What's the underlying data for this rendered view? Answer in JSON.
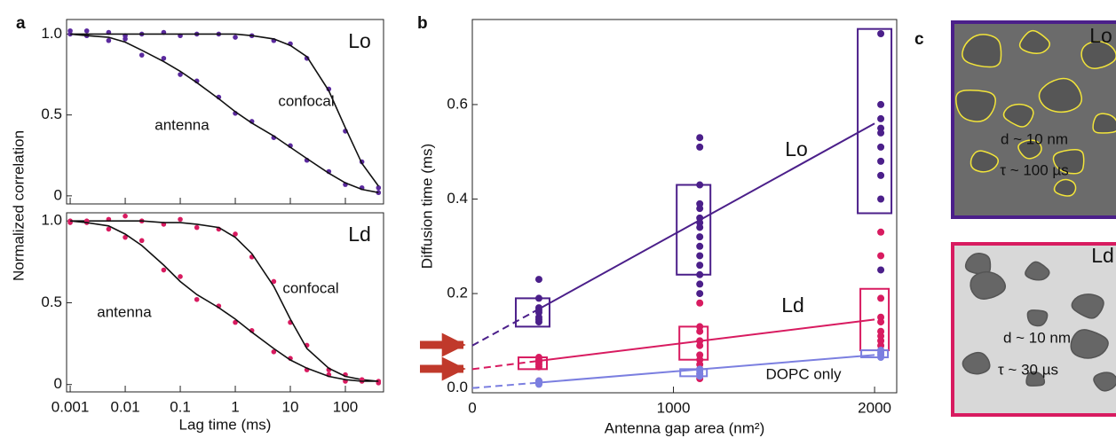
{
  "chart_data": [
    {
      "type": "line",
      "panel": "a",
      "label": "Lo",
      "label_color": "#5b2a9e",
      "log_x": true,
      "ylabel": "Normalized correlation",
      "x": [
        0.001,
        0.002,
        0.005,
        0.01,
        0.02,
        0.05,
        0.1,
        0.2,
        0.5,
        1,
        2,
        5,
        10,
        20,
        50,
        100,
        200,
        400
      ],
      "xlim": [
        0.00086,
        494
      ],
      "ylim": [
        -0.05,
        1.09
      ],
      "yticks": [
        0,
        0.5,
        {
          "value": 1,
          "label": "1.0"
        }
      ],
      "series": [
        {
          "name": "confocal",
          "color": "#5b2a9e",
          "values": [
            1.02,
            0.99,
            1.01,
            0.99,
            1.0,
            1.01,
            0.99,
            1.0,
            1.0,
            0.98,
            0.99,
            0.96,
            0.94,
            0.85,
            0.66,
            0.4,
            0.21,
            0.05
          ],
          "fit": [
            1,
            1,
            1,
            1,
            1,
            1,
            1,
            1,
            1,
            1,
            0.99,
            0.97,
            0.93,
            0.86,
            0.65,
            0.42,
            0.2,
            0.06
          ]
        },
        {
          "name": "antenna",
          "color": "#5b2a9e",
          "values": [
            1.0,
            1.02,
            0.96,
            0.97,
            0.87,
            0.85,
            0.75,
            0.71,
            0.61,
            0.51,
            0.46,
            0.36,
            0.31,
            0.22,
            0.15,
            0.07,
            0.05,
            0.02
          ],
          "fit": [
            1,
            0.99,
            0.98,
            0.95,
            0.9,
            0.83,
            0.77,
            0.7,
            0.6,
            0.52,
            0.45,
            0.37,
            0.3,
            0.23,
            0.14,
            0.08,
            0.04,
            0.02
          ]
        }
      ]
    },
    {
      "type": "line",
      "label": "Ld",
      "label_color": "#d81b60",
      "log_x": true,
      "xlabel": "Lag time (ms)",
      "x": [
        0.001,
        0.002,
        0.005,
        0.01,
        0.02,
        0.05,
        0.1,
        0.2,
        0.5,
        1,
        2,
        5,
        10,
        20,
        50,
        100,
        200,
        400
      ],
      "xlim": [
        0.00086,
        494
      ],
      "ylim": [
        -0.045,
        1.05
      ],
      "xticks": [
        0.001,
        0.01,
        0.1,
        1,
        10,
        100
      ],
      "yticks": [
        0,
        0.5,
        {
          "value": 1,
          "label": "1.0"
        }
      ],
      "series": [
        {
          "name": "confocal",
          "color": "#d81b60",
          "values": [
            1.0,
            0.99,
            1.01,
            1.03,
            1.0,
            0.98,
            1.01,
            0.96,
            0.95,
            0.92,
            0.78,
            0.63,
            0.38,
            0.24,
            0.09,
            0.06,
            0.02,
            0.02
          ],
          "fit": [
            1,
            1,
            1,
            1,
            1,
            0.99,
            0.99,
            0.98,
            0.96,
            0.9,
            0.8,
            0.6,
            0.4,
            0.22,
            0.1,
            0.05,
            0.03,
            0.02
          ]
        },
        {
          "name": "antenna",
          "color": "#d81b60",
          "values": [
            0.99,
            1.0,
            0.95,
            0.9,
            0.88,
            0.7,
            0.66,
            0.52,
            0.48,
            0.38,
            0.33,
            0.2,
            0.16,
            0.09,
            0.06,
            0.02,
            0.03,
            0.01
          ],
          "fit": [
            1,
            0.99,
            0.97,
            0.92,
            0.85,
            0.73,
            0.63,
            0.55,
            0.47,
            0.4,
            0.32,
            0.22,
            0.15,
            0.1,
            0.05,
            0.03,
            0.02,
            0.02
          ]
        }
      ]
    },
    {
      "type": "scatter",
      "panel": "b",
      "xlabel": "Antenna gap area (nm²)",
      "ylabel": "Diffusion time (ms)",
      "xlim": [
        0,
        2110
      ],
      "ylim": [
        -0.01,
        0.78
      ],
      "xticks": [
        0,
        1000,
        2000
      ],
      "yticks": [
        {
          "value": 0,
          "label": "0.0"
        },
        0.2,
        0.4,
        0.6
      ],
      "series": [
        {
          "name": "Lo",
          "color": "#4b1f8a",
          "x": [
            300,
            300,
            300,
            300,
            300,
            300,
            300,
            300,
            1100,
            1100,
            1100,
            1100,
            1100,
            1100,
            1100,
            1100,
            1100,
            1100,
            1100,
            1100,
            1100,
            1100,
            1100,
            2000,
            2000,
            2000,
            2000,
            2000,
            2000,
            2000,
            2000,
            2000,
            2000
          ],
          "values": [
            0.23,
            0.19,
            0.17,
            0.165,
            0.16,
            0.15,
            0.145,
            0.14,
            0.53,
            0.51,
            0.43,
            0.39,
            0.38,
            0.36,
            0.35,
            0.34,
            0.32,
            0.3,
            0.28,
            0.26,
            0.24,
            0.22,
            0.2,
            0.75,
            0.6,
            0.57,
            0.55,
            0.54,
            0.51,
            0.48,
            0.45,
            0.4,
            0.25
          ],
          "box_x": [
            300,
            1100,
            2000
          ],
          "box_low": [
            0.13,
            0.24,
            0.37
          ],
          "box_high": [
            0.19,
            0.43,
            0.76
          ],
          "fit_x": [
            0,
            300,
            2000
          ],
          "fit": [
            0.09,
            0.16,
            0.56
          ]
        },
        {
          "name": "Ld",
          "color": "#d81b60",
          "x": [
            300,
            300,
            300,
            300,
            300,
            300,
            1100,
            1100,
            1100,
            1100,
            1100,
            1100,
            1100,
            1100,
            1100,
            1100,
            1100,
            2000,
            2000,
            2000,
            2000,
            2000,
            2000,
            2000,
            2000,
            2000,
            2000
          ],
          "values": [
            0.065,
            0.06,
            0.055,
            0.05,
            0.045,
            0.015,
            0.18,
            0.13,
            0.12,
            0.1,
            0.09,
            0.07,
            0.06,
            0.05,
            0.04,
            0.03,
            0.02,
            0.33,
            0.28,
            0.19,
            0.15,
            0.14,
            0.12,
            0.11,
            0.1,
            0.09,
            0.08
          ],
          "box_x": [
            300,
            1100,
            2000
          ],
          "box_low": [
            0.04,
            0.06,
            0.08
          ],
          "box_high": [
            0.065,
            0.13,
            0.21
          ],
          "fit_x": [
            0,
            300,
            2000
          ],
          "fit": [
            0.04,
            0.056,
            0.145
          ]
        },
        {
          "name": "DOPC only",
          "color": "#7b7fe0",
          "x": [
            300,
            300,
            300,
            1100,
            1100,
            1100,
            1100,
            2000,
            2000,
            2000,
            2000
          ],
          "values": [
            0.015,
            0.01,
            0.008,
            0.04,
            0.035,
            0.03,
            0.025,
            0.08,
            0.075,
            0.07,
            0.065
          ],
          "box_x": [
            1100,
            2000
          ],
          "box_low": [
            0.025,
            0.065
          ],
          "box_high": [
            0.04,
            0.08
          ],
          "fit_x": [
            0,
            300,
            2000
          ],
          "fit": [
            0,
            0.0105,
            0.07
          ]
        }
      ]
    },
    {
      "type": "diagram",
      "panel": "c",
      "boxes": [
        {
          "label": "Lo",
          "d": "d ~ 10 nm",
          "tau": "τ ~ 100 µs"
        },
        {
          "label": "Ld",
          "d": "d ~ 10 nm",
          "tau": "τ ~ 30 µs"
        }
      ]
    }
  ]
}
